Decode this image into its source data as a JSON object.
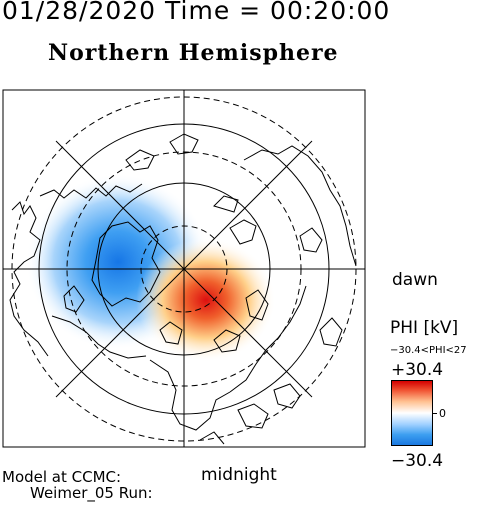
{
  "header": {
    "datetime": "01/28/2020 Time = 00:20:00",
    "hemisphere": "Northern Hemisphere"
  },
  "map": {
    "projection": "polar",
    "orientation": {
      "dawn": "dawn",
      "midnight": "midnight"
    },
    "field": "electric potential",
    "colors": {
      "positive": "#d40000",
      "zero": "#ffffff",
      "negative": "#1a78e0",
      "coast": "#000000"
    }
  },
  "colorbar": {
    "title": "PHI [kV]",
    "range_text": "−30.4<PHI<27",
    "max_label": "+30.4",
    "zero_label": "0",
    "min_label": "−30.4"
  },
  "footer": {
    "model_line1": "Model at CCMC:",
    "model_line2": "Weimer_05 Run:"
  }
}
